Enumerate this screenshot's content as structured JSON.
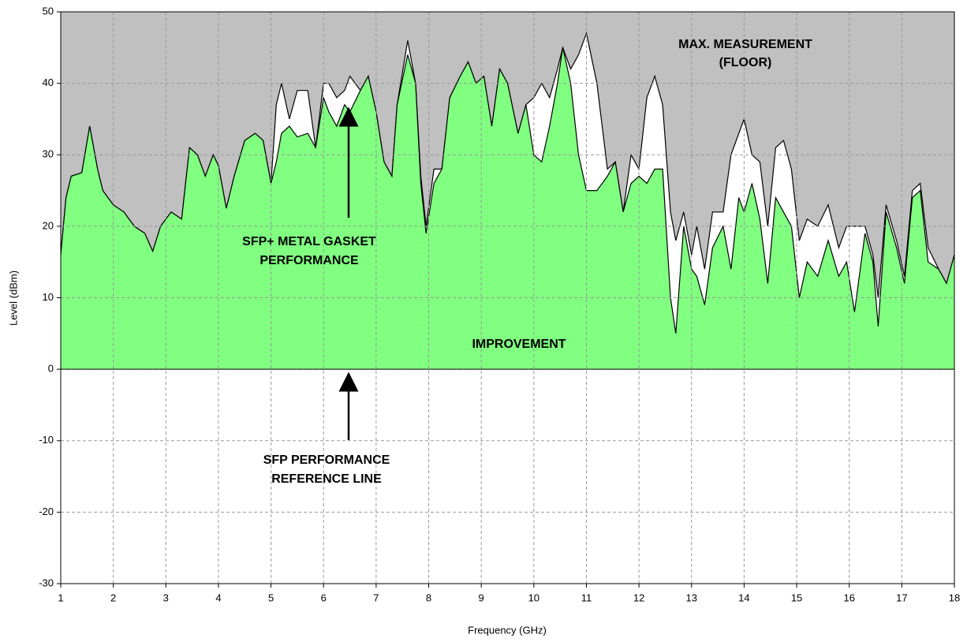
{
  "chart_data": {
    "type": "area",
    "x_label": "Frequency (GHz)",
    "y_label": "Level (dBm)",
    "xlim": [
      1,
      18
    ],
    "ylim": [
      -30,
      50
    ],
    "xticks": [
      1,
      2,
      3,
      4,
      5,
      6,
      7,
      8,
      9,
      10,
      11,
      12,
      13,
      14,
      15,
      16,
      17,
      18
    ],
    "yticks": [
      -30,
      -20,
      -10,
      0,
      10,
      20,
      30,
      40,
      50
    ],
    "grid": true,
    "x": [
      1.0,
      1.1,
      1.2,
      1.4,
      1.55,
      1.7,
      1.8,
      2.0,
      2.2,
      2.4,
      2.6,
      2.75,
      2.9,
      3.1,
      3.3,
      3.45,
      3.6,
      3.75,
      3.9,
      4.0,
      4.15,
      4.3,
      4.5,
      4.7,
      4.85,
      5.0,
      5.1,
      5.2,
      5.35,
      5.5,
      5.7,
      5.85,
      6.0,
      6.1,
      6.25,
      6.4,
      6.5,
      6.7,
      6.85,
      7.0,
      7.15,
      7.3,
      7.4,
      7.6,
      7.75,
      7.85,
      7.95,
      8.1,
      8.25,
      8.4,
      8.6,
      8.75,
      8.9,
      9.05,
      9.2,
      9.35,
      9.5,
      9.7,
      9.85,
      10.0,
      10.15,
      10.3,
      10.45,
      10.55,
      10.7,
      10.85,
      11.0,
      11.2,
      11.4,
      11.55,
      11.7,
      11.85,
      12.0,
      12.15,
      12.3,
      12.45,
      12.6,
      12.7,
      12.85,
      13.0,
      13.1,
      13.25,
      13.4,
      13.6,
      13.75,
      13.9,
      14.0,
      14.15,
      14.3,
      14.45,
      14.6,
      14.75,
      14.9,
      15.05,
      15.2,
      15.4,
      15.6,
      15.8,
      15.95,
      16.1,
      16.3,
      16.45,
      16.55,
      16.7,
      16.9,
      17.05,
      17.2,
      17.35,
      17.5,
      17.7,
      17.85,
      18.0
    ],
    "series": [
      {
        "color": "#ffffff",
        "values": [
          16,
          24,
          27,
          27.5,
          34,
          28,
          25,
          23,
          22,
          20,
          19,
          16.5,
          20,
          22,
          21,
          31,
          30,
          27,
          30,
          28.5,
          22.5,
          27,
          32,
          33,
          32,
          26,
          37,
          40,
          35,
          39,
          39,
          31,
          40,
          40,
          38,
          39,
          41,
          39,
          41,
          36,
          29,
          27,
          37,
          46,
          40,
          27,
          20,
          28,
          28,
          38,
          41,
          43,
          40,
          41,
          34,
          42,
          40,
          33,
          37,
          38,
          40,
          38,
          42,
          45,
          42,
          44,
          47,
          40,
          28,
          29,
          22,
          30,
          28,
          38,
          41,
          37,
          22,
          18,
          22,
          16,
          20,
          14,
          22,
          22,
          30,
          33,
          35,
          30,
          29,
          20,
          31,
          32,
          28,
          18,
          21,
          20,
          23,
          17,
          20,
          20,
          20,
          16,
          10,
          23,
          18,
          13,
          25,
          26,
          17,
          14,
          12,
          16
        ]
      },
      {
        "color": "#80ff80",
        "values": [
          16,
          24,
          27,
          27.5,
          34,
          28,
          25,
          23,
          22,
          20,
          19,
          16.5,
          20,
          22,
          21,
          31,
          30,
          27,
          30,
          28.5,
          22.5,
          27,
          32,
          33,
          32,
          26,
          29,
          33,
          34,
          32.5,
          33,
          31,
          38,
          36,
          34,
          37,
          36,
          39,
          41,
          36,
          29,
          27,
          37,
          44,
          40,
          26,
          19,
          26,
          28,
          38,
          41,
          43,
          40,
          41,
          34,
          42,
          40,
          33,
          37,
          30,
          29,
          34,
          40,
          45,
          40,
          30,
          25,
          25,
          27,
          29,
          22,
          26,
          27,
          26,
          28,
          28,
          10,
          5,
          20,
          14,
          13,
          9,
          17,
          20,
          14,
          24,
          22,
          26,
          21,
          12,
          24,
          22,
          20,
          10,
          15,
          13,
          18,
          13,
          15,
          8,
          19,
          15,
          6,
          22,
          17,
          12,
          24,
          25,
          15,
          14,
          12,
          16
        ]
      }
    ],
    "annotations": [
      "MAX. MEASUREMENT",
      "(FLOOR)",
      "SFP+ METAL GASKET",
      "PERFORMANCE",
      "IMPROVEMENT",
      "SFP PERFORMANCE",
      "REFERENCE LINE"
    ]
  }
}
